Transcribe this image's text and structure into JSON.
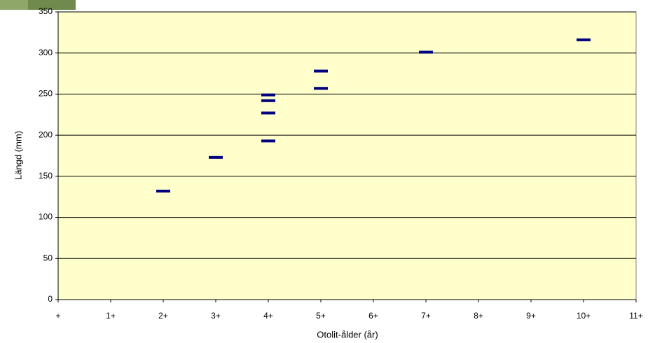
{
  "chart_data": {
    "type": "scatter",
    "x_label": "Otolit-ålder (år)",
    "y_label": "Längd (mm)",
    "x": [
      2,
      3,
      4,
      4,
      4,
      4,
      5,
      5,
      7,
      10
    ],
    "values": [
      132,
      173,
      249,
      242,
      227,
      193,
      278,
      257,
      301,
      316
    ],
    "color": "#000080",
    "marker": "dash",
    "background": "#ffffcc",
    "xlim": [
      0,
      11
    ],
    "xticks": [
      {
        "value": 0,
        "label": "+"
      },
      {
        "value": 1,
        "label": "1+"
      },
      {
        "value": 2,
        "label": "2+"
      },
      {
        "value": 3,
        "label": "3+"
      },
      {
        "value": 4,
        "label": "4+"
      },
      {
        "value": 5,
        "label": "5+"
      },
      {
        "value": 6,
        "label": "6+"
      },
      {
        "value": 7,
        "label": "7+"
      },
      {
        "value": 8,
        "label": "8+"
      },
      {
        "value": 9,
        "label": "9+"
      },
      {
        "value": 10,
        "label": "10+"
      },
      {
        "value": 11,
        "label": "11+"
      }
    ],
    "ylim": [
      0,
      350
    ],
    "yticks": [
      0,
      50,
      100,
      150,
      200,
      250,
      300,
      350
    ],
    "grid": true
  }
}
